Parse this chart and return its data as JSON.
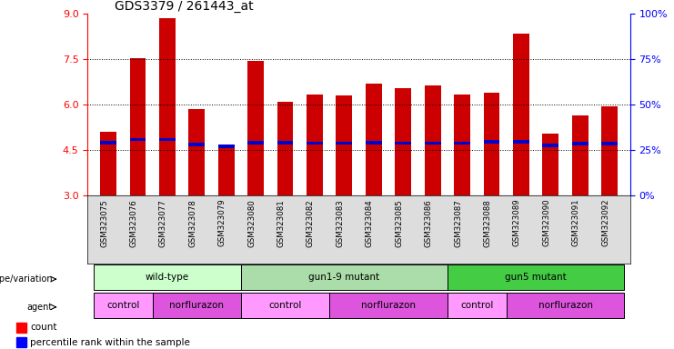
{
  "title": "GDS3379 / 261443_at",
  "samples": [
    "GSM323075",
    "GSM323076",
    "GSM323077",
    "GSM323078",
    "GSM323079",
    "GSM323080",
    "GSM323081",
    "GSM323082",
    "GSM323083",
    "GSM323084",
    "GSM323085",
    "GSM323086",
    "GSM323087",
    "GSM323088",
    "GSM323089",
    "GSM323090",
    "GSM323091",
    "GSM323092"
  ],
  "counts": [
    5.1,
    7.55,
    8.85,
    5.85,
    4.65,
    7.45,
    6.1,
    6.35,
    6.3,
    6.7,
    6.55,
    6.65,
    6.35,
    6.4,
    8.35,
    5.05,
    5.65,
    5.95
  ],
  "percentile_values": [
    4.75,
    4.85,
    4.85,
    4.68,
    4.62,
    4.75,
    4.75,
    4.73,
    4.73,
    4.75,
    4.73,
    4.73,
    4.73,
    4.78,
    4.78,
    4.65,
    4.72,
    4.72
  ],
  "ylim": [
    3,
    9
  ],
  "y_ticks": [
    3,
    4.5,
    6,
    7.5,
    9
  ],
  "right_y_ticks": [
    0,
    25,
    50,
    75,
    100
  ],
  "bar_color": "#cc0000",
  "blue_color": "#0000cc",
  "bar_width": 0.55,
  "geno_groups": [
    {
      "label": "wild-type",
      "start": 0,
      "end": 4,
      "color": "#ccffcc"
    },
    {
      "label": "gun1-9 mutant",
      "start": 5,
      "end": 11,
      "color": "#aaddaa"
    },
    {
      "label": "gun5 mutant",
      "start": 12,
      "end": 17,
      "color": "#44cc44"
    }
  ],
  "agent_groups": [
    {
      "label": "control",
      "start": 0,
      "end": 1,
      "color": "#ff99ff"
    },
    {
      "label": "norflurazon",
      "start": 2,
      "end": 4,
      "color": "#dd55dd"
    },
    {
      "label": "control",
      "start": 5,
      "end": 7,
      "color": "#ff99ff"
    },
    {
      "label": "norflurazon",
      "start": 8,
      "end": 11,
      "color": "#dd55dd"
    },
    {
      "label": "control",
      "start": 12,
      "end": 13,
      "color": "#ff99ff"
    },
    {
      "label": "norflurazon",
      "start": 14,
      "end": 17,
      "color": "#dd55dd"
    }
  ],
  "label_geno": "genotype/variation",
  "label_agent": "agent",
  "legend_count": "count",
  "legend_pct": "percentile rank within the sample"
}
